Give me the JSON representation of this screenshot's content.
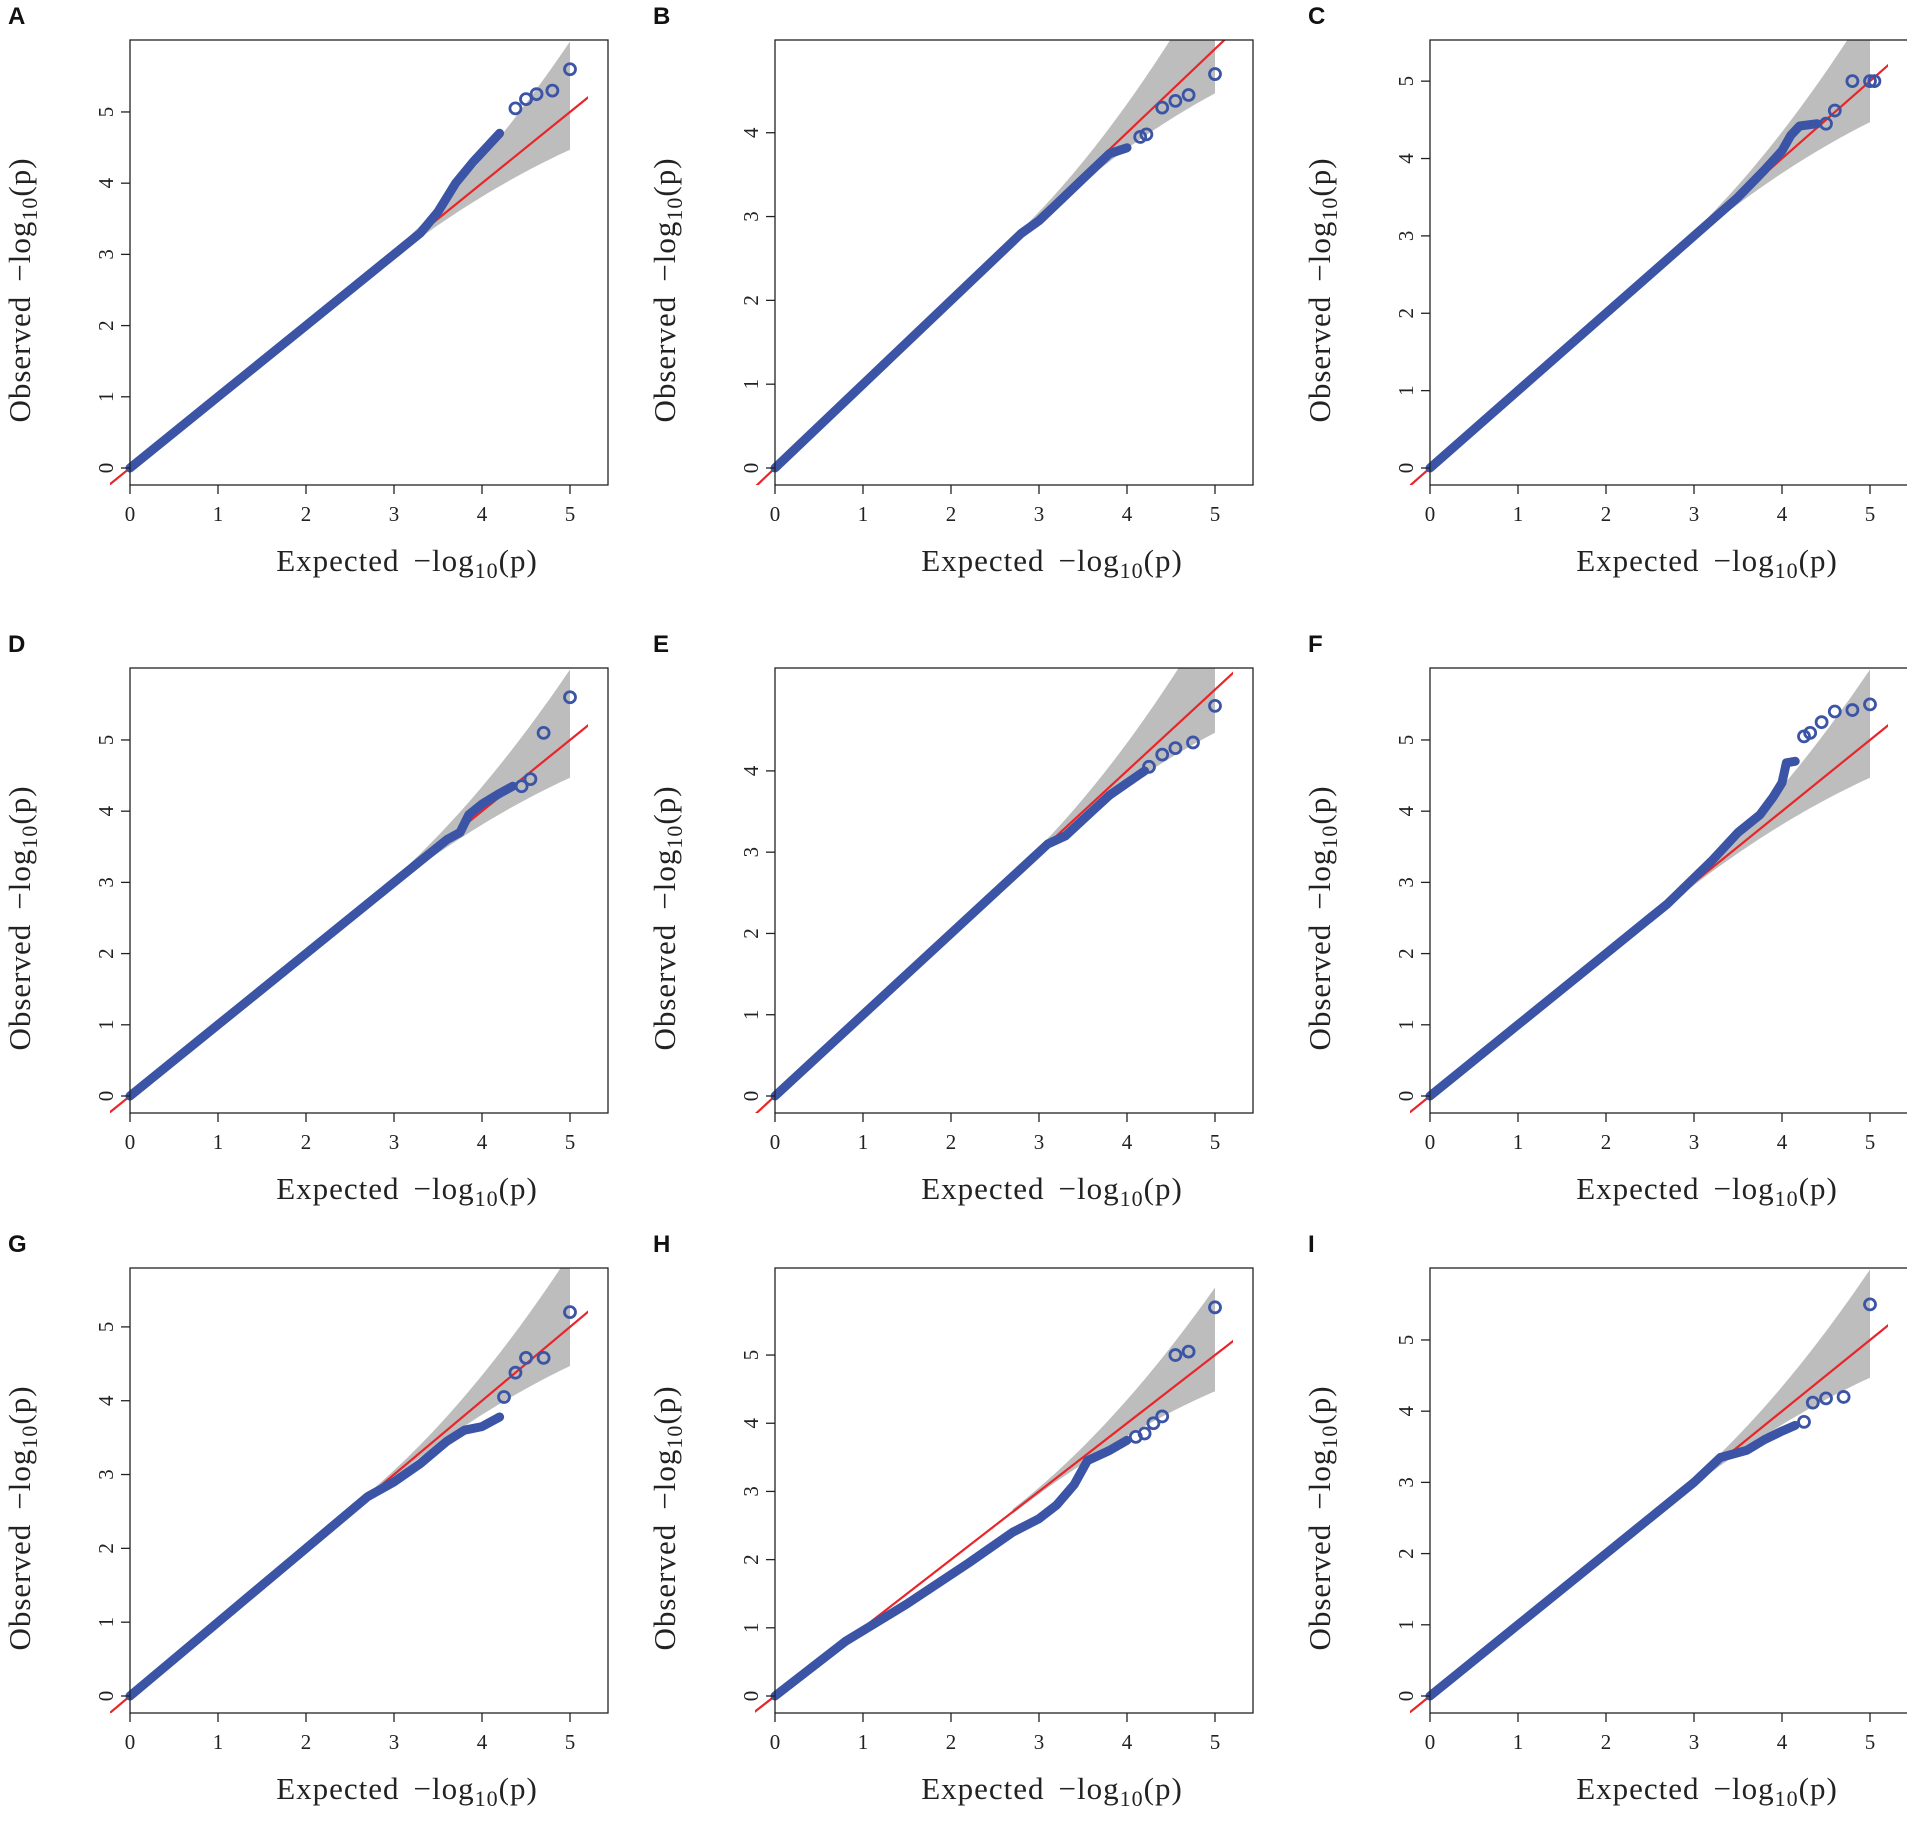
{
  "colors": {
    "points": "#3b54a5",
    "reference": "#e8262a",
    "band": "#bdbdbd"
  },
  "chart_data": [
    {
      "panel": "A",
      "type": "scatter",
      "xlabel": "Expected",
      "ylabel": "Observed",
      "log_main": "−log",
      "log_sub": "10",
      "log_arg": "(p)",
      "xlim": [
        0,
        5.2
      ],
      "ylim": [
        0,
        5.65
      ],
      "xticks": [
        0,
        1,
        2,
        3,
        4,
        5
      ],
      "yticks": [
        0,
        1,
        2,
        3,
        4,
        5
      ],
      "curve": [
        [
          0,
          0
        ],
        [
          1,
          1
        ],
        [
          2,
          2
        ],
        [
          2.8,
          2.8
        ],
        [
          3.1,
          3.1
        ],
        [
          3.3,
          3.3
        ],
        [
          3.5,
          3.6
        ],
        [
          3.7,
          4.0
        ],
        [
          3.9,
          4.3
        ],
        [
          4.05,
          4.5
        ],
        [
          4.2,
          4.7
        ]
      ],
      "points": [
        [
          4.38,
          5.05
        ],
        [
          4.5,
          5.18
        ],
        [
          4.62,
          5.25
        ],
        [
          4.8,
          5.3
        ],
        [
          5.0,
          5.6
        ]
      ]
    },
    {
      "panel": "B",
      "type": "scatter",
      "xlabel": "Expected",
      "ylabel": "Observed",
      "log_main": "−log",
      "log_sub": "10",
      "log_arg": "(p)",
      "xlim": [
        0,
        5.2
      ],
      "ylim": [
        0,
        4.8
      ],
      "xticks": [
        0,
        1,
        2,
        3,
        4,
        5
      ],
      "yticks": [
        0,
        1,
        2,
        3,
        4
      ],
      "curve": [
        [
          0,
          0
        ],
        [
          1,
          1
        ],
        [
          2,
          2
        ],
        [
          2.8,
          2.8
        ],
        [
          3.0,
          2.95
        ],
        [
          3.2,
          3.15
        ],
        [
          3.5,
          3.45
        ],
        [
          3.8,
          3.75
        ],
        [
          4.0,
          3.82
        ]
      ],
      "points": [
        [
          4.15,
          3.95
        ],
        [
          4.22,
          3.98
        ],
        [
          4.4,
          4.3
        ],
        [
          4.55,
          4.38
        ],
        [
          4.7,
          4.45
        ],
        [
          5.0,
          4.7
        ]
      ]
    },
    {
      "panel": "C",
      "type": "scatter",
      "xlabel": "Expected",
      "ylabel": "Observed",
      "log_main": "−log",
      "log_sub": "10",
      "log_arg": "(p)",
      "xlim": [
        0,
        5.1
      ],
      "ylim": [
        0,
        5.2
      ],
      "xticks": [
        0,
        1,
        2,
        3,
        4,
        5
      ],
      "yticks": [
        0,
        1,
        2,
        3,
        4,
        5
      ],
      "curve": [
        [
          0,
          0
        ],
        [
          1,
          1
        ],
        [
          2,
          2
        ],
        [
          3,
          3
        ],
        [
          3.5,
          3.5
        ],
        [
          3.8,
          3.85
        ],
        [
          4.0,
          4.1
        ],
        [
          4.1,
          4.3
        ],
        [
          4.2,
          4.42
        ],
        [
          4.4,
          4.45
        ]
      ],
      "points": [
        [
          4.5,
          4.45
        ],
        [
          4.6,
          4.62
        ],
        [
          4.8,
          5.0
        ],
        [
          5.0,
          5.0
        ],
        [
          5.05,
          5.0
        ]
      ]
    },
    {
      "panel": "D",
      "type": "scatter",
      "xlabel": "Expected",
      "ylabel": "Observed",
      "log_main": "−log",
      "log_sub": "10",
      "log_arg": "(p)",
      "xlim": [
        0,
        5.2
      ],
      "ylim": [
        0,
        5.65
      ],
      "xticks": [
        0,
        1,
        2,
        3,
        4,
        5
      ],
      "yticks": [
        0,
        1,
        2,
        3,
        4,
        5
      ],
      "curve": [
        [
          0,
          0
        ],
        [
          1,
          1
        ],
        [
          2,
          2
        ],
        [
          3,
          3
        ],
        [
          3.3,
          3.3
        ],
        [
          3.6,
          3.6
        ],
        [
          3.75,
          3.7
        ],
        [
          3.85,
          3.95
        ],
        [
          4.0,
          4.1
        ],
        [
          4.2,
          4.25
        ],
        [
          4.35,
          4.35
        ]
      ],
      "points": [
        [
          4.45,
          4.35
        ],
        [
          4.55,
          4.45
        ],
        [
          4.7,
          5.1
        ],
        [
          5.0,
          5.6
        ]
      ]
    },
    {
      "panel": "E",
      "type": "scatter",
      "xlabel": "Expected",
      "ylabel": "Observed",
      "log_main": "−log",
      "log_sub": "10",
      "log_arg": "(p)",
      "xlim": [
        0,
        5.2
      ],
      "ylim": [
        0,
        4.95
      ],
      "xticks": [
        0,
        1,
        2,
        3,
        4,
        5
      ],
      "yticks": [
        0,
        1,
        2,
        3,
        4
      ],
      "curve": [
        [
          0,
          0
        ],
        [
          1,
          1
        ],
        [
          2,
          2
        ],
        [
          2.8,
          2.8
        ],
        [
          3.1,
          3.1
        ],
        [
          3.3,
          3.2
        ],
        [
          3.6,
          3.5
        ],
        [
          3.8,
          3.7
        ],
        [
          4.0,
          3.85
        ],
        [
          4.2,
          4.0
        ]
      ],
      "points": [
        [
          4.25,
          4.05
        ],
        [
          4.4,
          4.2
        ],
        [
          4.55,
          4.28
        ],
        [
          4.75,
          4.35
        ],
        [
          5.0,
          4.8
        ]
      ]
    },
    {
      "panel": "F",
      "type": "scatter",
      "xlabel": "Expected",
      "ylabel": "Observed",
      "log_main": "−log",
      "log_sub": "10",
      "log_arg": "(p)",
      "xlim": [
        0,
        5.1
      ],
      "ylim": [
        0,
        5.65
      ],
      "xticks": [
        0,
        1,
        2,
        3,
        4,
        5
      ],
      "yticks": [
        0,
        1,
        2,
        3,
        4,
        5
      ],
      "curve": [
        [
          0,
          0
        ],
        [
          1,
          1
        ],
        [
          2,
          2
        ],
        [
          2.7,
          2.7
        ],
        [
          2.95,
          3.0
        ],
        [
          3.2,
          3.3
        ],
        [
          3.5,
          3.7
        ],
        [
          3.75,
          3.95
        ],
        [
          3.9,
          4.2
        ],
        [
          4.0,
          4.4
        ],
        [
          4.05,
          4.68
        ],
        [
          4.15,
          4.7
        ]
      ],
      "points": [
        [
          4.25,
          5.05
        ],
        [
          4.32,
          5.1
        ],
        [
          4.45,
          5.25
        ],
        [
          4.6,
          5.4
        ],
        [
          4.8,
          5.42
        ],
        [
          5.0,
          5.5
        ]
      ]
    },
    {
      "panel": "G",
      "type": "scatter",
      "xlabel": "Expected",
      "ylabel": "Observed",
      "log_main": "−log",
      "log_sub": "10",
      "log_arg": "(p)",
      "xlim": [
        0,
        5.2
      ],
      "ylim": [
        0,
        5.45
      ],
      "xticks": [
        0,
        1,
        2,
        3,
        4,
        5
      ],
      "yticks": [
        0,
        1,
        2,
        3,
        4,
        5
      ],
      "curve": [
        [
          0,
          0
        ],
        [
          1,
          1
        ],
        [
          2,
          2
        ],
        [
          2.7,
          2.7
        ],
        [
          3.0,
          2.9
        ],
        [
          3.3,
          3.15
        ],
        [
          3.6,
          3.45
        ],
        [
          3.8,
          3.6
        ],
        [
          4.0,
          3.65
        ],
        [
          4.2,
          3.78
        ]
      ],
      "points": [
        [
          4.25,
          4.05
        ],
        [
          4.38,
          4.38
        ],
        [
          4.5,
          4.58
        ],
        [
          4.7,
          4.58
        ],
        [
          5.0,
          5.2
        ]
      ]
    },
    {
      "panel": "H",
      "type": "scatter",
      "xlabel": "Expected",
      "ylabel": "Observed",
      "log_main": "−log",
      "log_sub": "10",
      "log_arg": "(p)",
      "xlim": [
        0,
        5.2
      ],
      "ylim": [
        0,
        5.9
      ],
      "xticks": [
        0,
        1,
        2,
        3,
        4,
        5
      ],
      "yticks": [
        0,
        1,
        2,
        3,
        4,
        5
      ],
      "curve": [
        [
          0,
          0
        ],
        [
          0.8,
          0.8
        ],
        [
          1.5,
          1.35
        ],
        [
          2.2,
          1.95
        ],
        [
          2.7,
          2.4
        ],
        [
          3.0,
          2.6
        ],
        [
          3.2,
          2.8
        ],
        [
          3.4,
          3.1
        ],
        [
          3.55,
          3.45
        ],
        [
          3.8,
          3.6
        ],
        [
          4.0,
          3.75
        ]
      ],
      "points": [
        [
          4.1,
          3.8
        ],
        [
          4.2,
          3.85
        ],
        [
          4.3,
          4.0
        ],
        [
          4.4,
          4.1
        ],
        [
          4.55,
          5.0
        ],
        [
          4.7,
          5.05
        ],
        [
          5.0,
          5.7
        ]
      ]
    },
    {
      "panel": "I",
      "type": "scatter",
      "xlabel": "Expected",
      "ylabel": "Observed",
      "log_main": "−log",
      "log_sub": "10",
      "log_arg": "(p)",
      "xlim": [
        0,
        5.1
      ],
      "ylim": [
        0,
        5.65
      ],
      "xticks": [
        0,
        1,
        2,
        3,
        4,
        5
      ],
      "yticks": [
        0,
        1,
        2,
        3,
        4,
        5
      ],
      "curve": [
        [
          0,
          0
        ],
        [
          1,
          1
        ],
        [
          2,
          2
        ],
        [
          3,
          3
        ],
        [
          3.3,
          3.35
        ],
        [
          3.6,
          3.45
        ],
        [
          3.8,
          3.6
        ],
        [
          4.0,
          3.72
        ],
        [
          4.15,
          3.8
        ]
      ],
      "points": [
        [
          4.25,
          3.85
        ],
        [
          4.35,
          4.12
        ],
        [
          4.5,
          4.18
        ],
        [
          4.7,
          4.2
        ],
        [
          5.0,
          5.5
        ]
      ]
    }
  ]
}
